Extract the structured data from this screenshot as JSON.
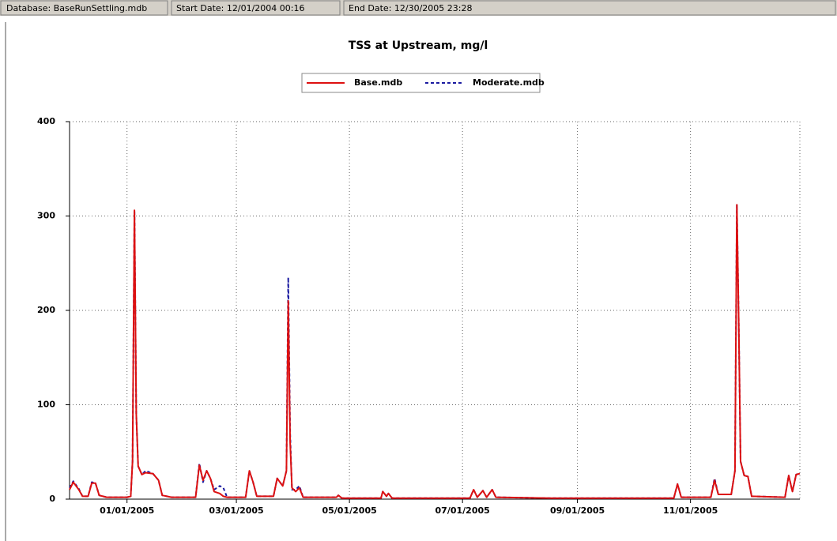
{
  "status_bar": [
    "Database: BaseRunSettling.mdb",
    "Start Date: 12/01/2004 00:16",
    "End Date: 12/30/2005 23:28"
  ],
  "chart_data": {
    "type": "line",
    "title": "TSS at Upstream, mg/l",
    "x": [
      "2004-12-01",
      "2004-12-03",
      "2004-12-06",
      "2004-12-08",
      "2004-12-11",
      "2004-12-13",
      "2004-12-15",
      "2004-12-17",
      "2004-12-21",
      "2005-01-01",
      "2005-01-03",
      "2005-01-04",
      "2005-01-05",
      "2005-01-06",
      "2005-01-07",
      "2005-01-09",
      "2005-01-11",
      "2005-01-15",
      "2005-01-18",
      "2005-01-20",
      "2005-01-25",
      "2005-02-07",
      "2005-02-09",
      "2005-02-11",
      "2005-02-13",
      "2005-02-15",
      "2005-02-17",
      "2005-02-20",
      "2005-02-22",
      "2005-02-24",
      "2005-03-06",
      "2005-03-08",
      "2005-03-10",
      "2005-03-12",
      "2005-03-21",
      "2005-03-23",
      "2005-03-26",
      "2005-03-28",
      "2005-03-29",
      "2005-03-30",
      "2005-03-31",
      "2005-04-02",
      "2005-04-04",
      "2005-04-06",
      "2005-04-24",
      "2005-04-25",
      "2005-04-27",
      "2005-05-18",
      "2005-05-19",
      "2005-05-21",
      "2005-05-22",
      "2005-05-24",
      "2005-07-05",
      "2005-07-07",
      "2005-07-09",
      "2005-07-12",
      "2005-07-14",
      "2005-07-17",
      "2005-07-19",
      "2005-08-18",
      "2005-10-23",
      "2005-10-25",
      "2005-10-27",
      "2005-11-12",
      "2005-11-14",
      "2005-11-16",
      "2005-11-23",
      "2005-11-25",
      "2005-11-26",
      "2005-11-27",
      "2005-11-28",
      "2005-11-30",
      "2005-12-02",
      "2005-12-04",
      "2005-12-22",
      "2005-12-24",
      "2005-12-26",
      "2005-12-28",
      "2005-12-30"
    ],
    "series": [
      {
        "name": "Moderate.mdb",
        "color": "#1a1aa0",
        "dash": true,
        "values": [
          12,
          19,
          11,
          3,
          3,
          18,
          17,
          4,
          2,
          2,
          3,
          40,
          306,
          90,
          35,
          26,
          30,
          27,
          20,
          4,
          2,
          2,
          38,
          18,
          30,
          22,
          10,
          14,
          12,
          2,
          2,
          30,
          18,
          3,
          3,
          22,
          14,
          30,
          235,
          70,
          10,
          10,
          14,
          2,
          2,
          4,
          1,
          1,
          8,
          3,
          6,
          1,
          1,
          10,
          2,
          9,
          2,
          10,
          2,
          1,
          1,
          16,
          2,
          2,
          22,
          5,
          5,
          30,
          312,
          190,
          40,
          25,
          24,
          3,
          2,
          25,
          8,
          26,
          27
        ]
      },
      {
        "name": "Base.mdb",
        "color": "#dd1111",
        "dash": false,
        "values": [
          10,
          18,
          10,
          3,
          3,
          17,
          17,
          4,
          2,
          2,
          3,
          40,
          306,
          90,
          35,
          26,
          28,
          27,
          20,
          4,
          2,
          2,
          36,
          20,
          30,
          22,
          8,
          6,
          3,
          2,
          2,
          30,
          18,
          3,
          3,
          22,
          14,
          30,
          210,
          60,
          12,
          8,
          12,
          2,
          2,
          4,
          1,
          1,
          8,
          3,
          6,
          1,
          1,
          10,
          2,
          9,
          2,
          10,
          2,
          1,
          1,
          16,
          2,
          2,
          20,
          5,
          5,
          30,
          312,
          190,
          40,
          25,
          24,
          3,
          2,
          25,
          8,
          26,
          27
        ]
      }
    ],
    "xlim": [
      "2004-12-01",
      "2005-12-30"
    ],
    "xticks": [
      {
        "value": "2005-01-01",
        "label": "01/01/2005"
      },
      {
        "value": "2005-03-01",
        "label": "03/01/2005"
      },
      {
        "value": "2005-05-01",
        "label": "05/01/2005"
      },
      {
        "value": "2005-07-01",
        "label": "07/01/2005"
      },
      {
        "value": "2005-09-01",
        "label": "09/01/2005"
      },
      {
        "value": "2005-11-01",
        "label": "11/01/2005"
      }
    ],
    "ylim": [
      0,
      400
    ],
    "yticks": [
      0,
      100,
      200,
      300,
      400
    ],
    "grid": true,
    "legend": "top"
  }
}
